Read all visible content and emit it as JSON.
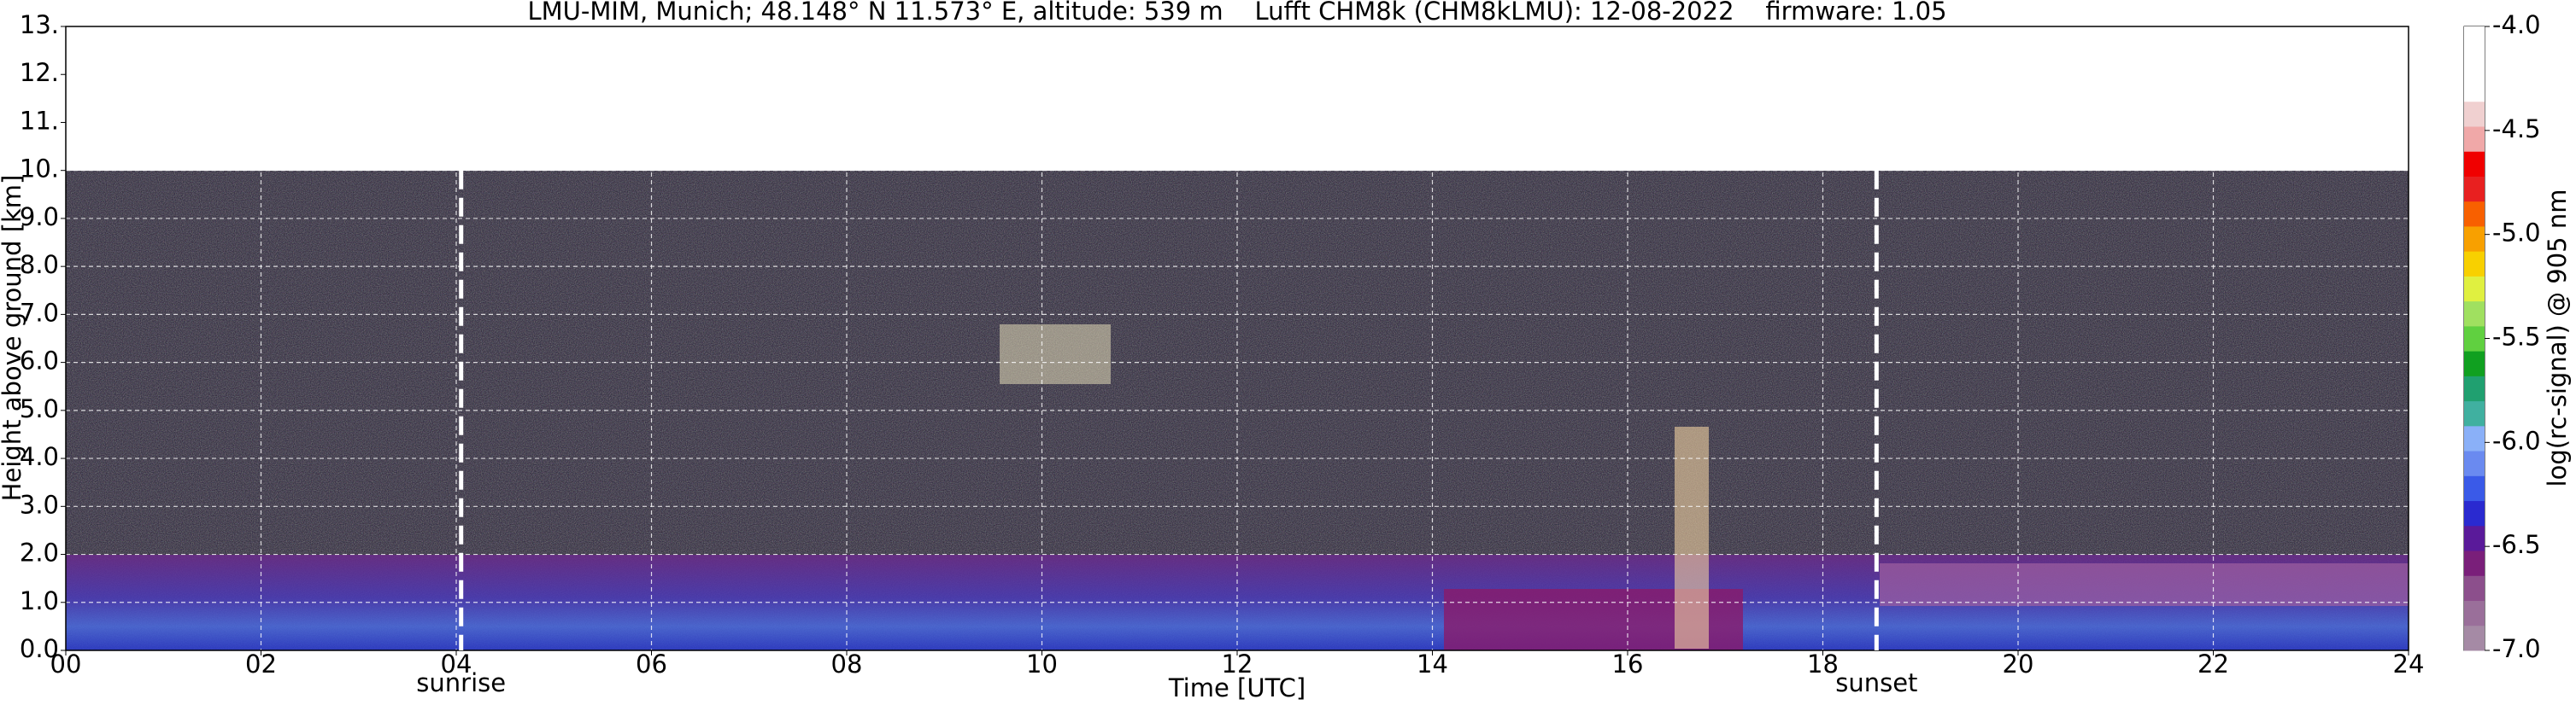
{
  "chart_data": {
    "type": "heatmap",
    "title": "LMU-MIM, Munich; 48.148° N 11.573° E, altitude: 539 m    Lufft CHM8k (CHM8kLMU): 12-08-2022    firmware: 1.05",
    "xlabel": "Time [UTC]",
    "ylabel": "Height above ground [km]",
    "xlim": [
      0,
      24
    ],
    "xticks": [
      {
        "value": 0,
        "label": "00"
      },
      {
        "value": 2,
        "label": "02"
      },
      {
        "value": 4,
        "label": "04"
      },
      {
        "value": 6,
        "label": "06"
      },
      {
        "value": 8,
        "label": "08"
      },
      10,
      12,
      14,
      16,
      18,
      20,
      22,
      24
    ],
    "ylim": [
      0,
      13
    ],
    "yticks": [
      {
        "value": 0,
        "label": "0.0"
      },
      {
        "value": 1,
        "label": "1.0"
      },
      {
        "value": 2,
        "label": "2.0"
      },
      {
        "value": 3,
        "label": "3.0"
      },
      {
        "value": 4,
        "label": "4.0"
      },
      {
        "value": 5,
        "label": "5.0"
      },
      {
        "value": 6,
        "label": "6.0"
      },
      {
        "value": 7,
        "label": "7.0"
      },
      {
        "value": 8,
        "label": "8.0"
      },
      {
        "value": 9,
        "label": "9.0"
      },
      {
        "value": 10,
        "label": "10."
      },
      {
        "value": 11,
        "label": "11."
      },
      {
        "value": 12,
        "label": "12."
      },
      {
        "value": 13,
        "label": "13."
      }
    ],
    "grid": true,
    "colorbar_label": "log(rc-signal) @ 905 nm",
    "clim": [
      -7,
      -4
    ],
    "cticks": [
      {
        "value": -7,
        "label": "-7.0"
      },
      {
        "value": -6.5,
        "label": "-6.5"
      },
      {
        "value": -6,
        "label": "-6.0"
      },
      {
        "value": -5.5,
        "label": "-5.5"
      },
      {
        "value": -5,
        "label": "-5.0"
      },
      {
        "value": -4.5,
        "label": "-4.5"
      },
      {
        "value": -4,
        "label": "-4.0"
      }
    ],
    "colormap": [
      "#a58aa5",
      "#9a6f9a",
      "#8c4f8c",
      "#7a1f7a",
      "#5a1a9a",
      "#2a2ad0",
      "#3a5ae8",
      "#6a8af0",
      "#8ab0f8",
      "#40b0a0",
      "#20a070",
      "#10a020",
      "#60d040",
      "#a0e060",
      "#e0f040",
      "#f8d000",
      "#f8a000",
      "#f86000",
      "#e82020",
      "#f00000",
      "#f0a8a8",
      "#f0d0d0",
      "#ffffff",
      "#ffffff",
      "#ffffff"
    ],
    "annotations": [
      {
        "text": "sunrise",
        "x": 4.05
      },
      {
        "text": "sunset",
        "x": 18.55
      }
    ]
  }
}
